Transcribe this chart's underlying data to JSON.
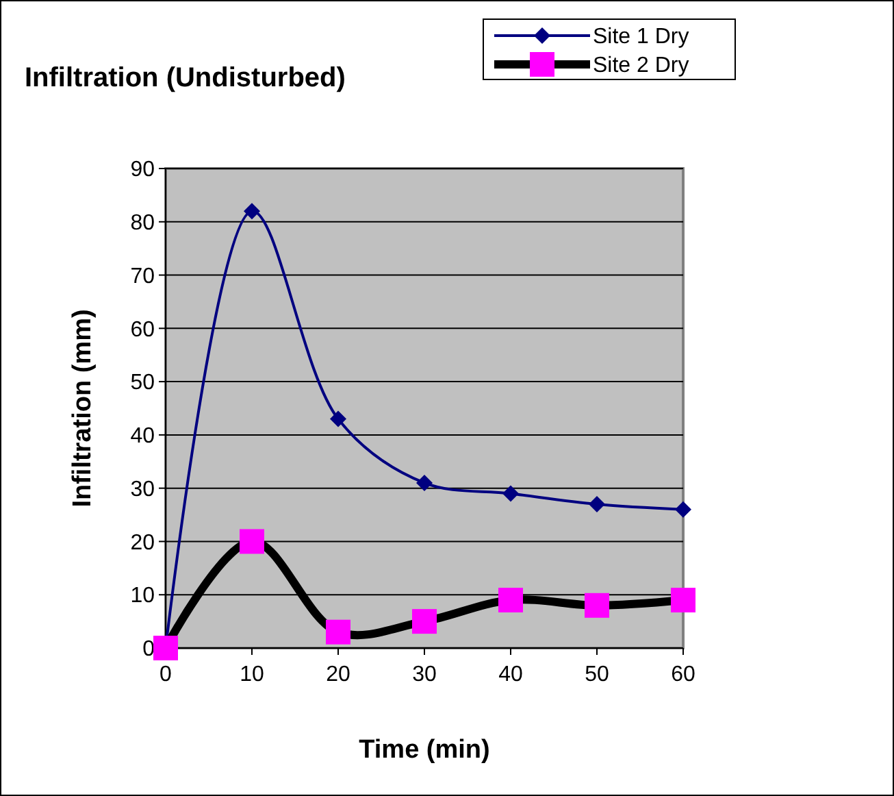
{
  "chart_data": {
    "type": "line",
    "title": "Infiltration (Undisturbed)",
    "xlabel": "Time (min)",
    "ylabel": "Infiltration (mm)",
    "x": [
      0,
      10,
      20,
      30,
      40,
      50,
      60
    ],
    "xlim": [
      0,
      60
    ],
    "xticks": [
      0,
      10,
      20,
      30,
      40,
      50,
      60
    ],
    "ylim": [
      0,
      90
    ],
    "yticks": [
      0,
      10,
      20,
      30,
      40,
      50,
      60,
      70,
      80,
      90
    ],
    "grid": "y",
    "legend": "top right",
    "series": [
      {
        "name": "Site 1 Dry",
        "color": "#000080",
        "marker": "diamond",
        "values": [
          0,
          82,
          43,
          31,
          29,
          27,
          26
        ]
      },
      {
        "name": "Site 2 Dry",
        "color": "#ff00ff",
        "marker": "square",
        "values": [
          0,
          20,
          3,
          5,
          9,
          8,
          9
        ]
      }
    ]
  }
}
